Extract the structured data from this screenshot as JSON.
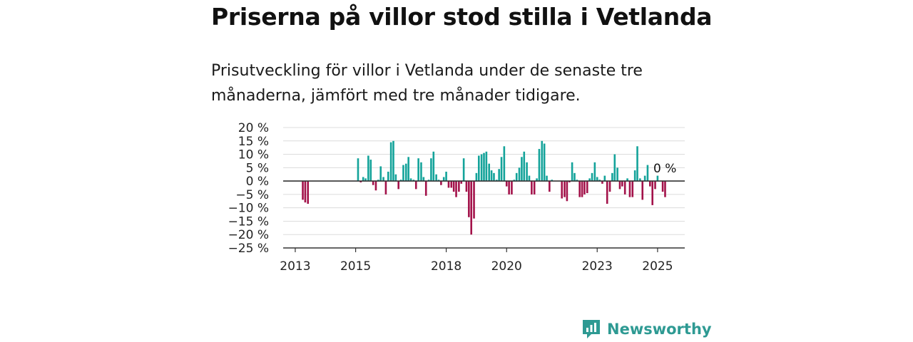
{
  "title": "Priserna på villor stod stilla i Vetlanda",
  "subtitle": "Prisutveckling för villor i Vetlanda under de senaste tre månaderna, jämfört med tre månader tidigare.",
  "brand": "Newsworthy",
  "colors": {
    "positive": "#14a39a",
    "negative": "#a3124a",
    "grid": "#dcdcdc",
    "axis": "#333333",
    "brand": "#2e9a93"
  },
  "chart_data": {
    "type": "bar",
    "title": "",
    "xlabel": "",
    "ylabel": "",
    "ylim": [
      -25,
      20
    ],
    "ytick_labels": [
      "20 %",
      "15 %",
      "10 %",
      "5 %",
      "0 %",
      "−5 %",
      "−10 %",
      "−15 %",
      "−20 %",
      "−25 %"
    ],
    "ytick_values": [
      20,
      15,
      10,
      5,
      0,
      -5,
      -10,
      -15,
      -20,
      -25
    ],
    "xtick_labels": [
      "2013",
      "2015",
      "2018",
      "2020",
      "2023",
      "2025"
    ],
    "xtick_values": [
      2013.0,
      2015.0,
      2018.0,
      2020.0,
      2023.0,
      2025.0
    ],
    "xlim": [
      2012.6,
      2025.9
    ],
    "annotation": "0 %",
    "points": [
      {
        "x": 2013.25,
        "y": -7
      },
      {
        "x": 2013.33,
        "y": -8
      },
      {
        "x": 2013.42,
        "y": -8.5
      },
      {
        "x": 2015.08,
        "y": 8.5
      },
      {
        "x": 2015.17,
        "y": -0.5
      },
      {
        "x": 2015.25,
        "y": 1.5
      },
      {
        "x": 2015.33,
        "y": 1
      },
      {
        "x": 2015.42,
        "y": 9.5
      },
      {
        "x": 2015.5,
        "y": 8
      },
      {
        "x": 2015.58,
        "y": -1.5
      },
      {
        "x": 2015.67,
        "y": -3.5
      },
      {
        "x": 2015.75,
        "y": 0.5
      },
      {
        "x": 2015.83,
        "y": 5.5
      },
      {
        "x": 2015.92,
        "y": 1.5
      },
      {
        "x": 2016.0,
        "y": -5
      },
      {
        "x": 2016.08,
        "y": 3.5
      },
      {
        "x": 2016.17,
        "y": 14.5
      },
      {
        "x": 2016.25,
        "y": 15
      },
      {
        "x": 2016.33,
        "y": 2.5
      },
      {
        "x": 2016.42,
        "y": -3
      },
      {
        "x": 2016.5,
        "y": 0.5
      },
      {
        "x": 2016.58,
        "y": 6
      },
      {
        "x": 2016.67,
        "y": 6.5
      },
      {
        "x": 2016.75,
        "y": 9
      },
      {
        "x": 2016.83,
        "y": 1
      },
      {
        "x": 2016.92,
        "y": 0.5
      },
      {
        "x": 2017.0,
        "y": -3
      },
      {
        "x": 2017.08,
        "y": 8.5
      },
      {
        "x": 2017.17,
        "y": 7
      },
      {
        "x": 2017.25,
        "y": 1.5
      },
      {
        "x": 2017.33,
        "y": -5.5
      },
      {
        "x": 2017.42,
        "y": 0.5
      },
      {
        "x": 2017.5,
        "y": 8.5
      },
      {
        "x": 2017.58,
        "y": 11
      },
      {
        "x": 2017.67,
        "y": 2.5
      },
      {
        "x": 2017.75,
        "y": 0.5
      },
      {
        "x": 2017.83,
        "y": -1.5
      },
      {
        "x": 2017.92,
        "y": 1.5
      },
      {
        "x": 2018.0,
        "y": 3.5
      },
      {
        "x": 2018.08,
        "y": -2.5
      },
      {
        "x": 2018.17,
        "y": -2.5
      },
      {
        "x": 2018.25,
        "y": -4
      },
      {
        "x": 2018.33,
        "y": -6
      },
      {
        "x": 2018.42,
        "y": -4
      },
      {
        "x": 2018.5,
        "y": -1
      },
      {
        "x": 2018.58,
        "y": 8.5
      },
      {
        "x": 2018.67,
        "y": -4
      },
      {
        "x": 2018.75,
        "y": -13.5
      },
      {
        "x": 2018.83,
        "y": -20
      },
      {
        "x": 2018.92,
        "y": -14
      },
      {
        "x": 2019.0,
        "y": 3
      },
      {
        "x": 2019.08,
        "y": 9.5
      },
      {
        "x": 2019.17,
        "y": 10
      },
      {
        "x": 2019.25,
        "y": 10.5
      },
      {
        "x": 2019.33,
        "y": 11
      },
      {
        "x": 2019.42,
        "y": 6.5
      },
      {
        "x": 2019.5,
        "y": 4
      },
      {
        "x": 2019.58,
        "y": 3
      },
      {
        "x": 2019.67,
        "y": 0.5
      },
      {
        "x": 2019.75,
        "y": 4.5
      },
      {
        "x": 2019.83,
        "y": 9
      },
      {
        "x": 2019.92,
        "y": 13
      },
      {
        "x": 2020.0,
        "y": -2
      },
      {
        "x": 2020.08,
        "y": -5
      },
      {
        "x": 2020.17,
        "y": -5
      },
      {
        "x": 2020.25,
        "y": 0.5
      },
      {
        "x": 2020.33,
        "y": 3
      },
      {
        "x": 2020.42,
        "y": 5
      },
      {
        "x": 2020.5,
        "y": 9
      },
      {
        "x": 2020.58,
        "y": 11
      },
      {
        "x": 2020.67,
        "y": 7
      },
      {
        "x": 2020.75,
        "y": 2
      },
      {
        "x": 2020.83,
        "y": -5
      },
      {
        "x": 2020.92,
        "y": -5
      },
      {
        "x": 2021.0,
        "y": 1
      },
      {
        "x": 2021.08,
        "y": 12
      },
      {
        "x": 2021.17,
        "y": 15
      },
      {
        "x": 2021.25,
        "y": 14
      },
      {
        "x": 2021.33,
        "y": 2
      },
      {
        "x": 2021.42,
        "y": -4
      },
      {
        "x": 2021.5,
        "y": 0.5
      },
      {
        "x": 2021.83,
        "y": -6.5
      },
      {
        "x": 2021.92,
        "y": -6
      },
      {
        "x": 2022.0,
        "y": -7.5
      },
      {
        "x": 2022.08,
        "y": -0.5
      },
      {
        "x": 2022.17,
        "y": 7
      },
      {
        "x": 2022.25,
        "y": 3
      },
      {
        "x": 2022.33,
        "y": 0.5
      },
      {
        "x": 2022.42,
        "y": -6
      },
      {
        "x": 2022.5,
        "y": -6
      },
      {
        "x": 2022.58,
        "y": -5
      },
      {
        "x": 2022.67,
        "y": -4.5
      },
      {
        "x": 2022.75,
        "y": 1
      },
      {
        "x": 2022.83,
        "y": 3
      },
      {
        "x": 2022.92,
        "y": 7
      },
      {
        "x": 2023.0,
        "y": 1.5
      },
      {
        "x": 2023.08,
        "y": 0.5
      },
      {
        "x": 2023.17,
        "y": -1
      },
      {
        "x": 2023.25,
        "y": 2
      },
      {
        "x": 2023.33,
        "y": -8.5
      },
      {
        "x": 2023.42,
        "y": -4
      },
      {
        "x": 2023.5,
        "y": 3
      },
      {
        "x": 2023.58,
        "y": 10
      },
      {
        "x": 2023.67,
        "y": 5
      },
      {
        "x": 2023.75,
        "y": -3
      },
      {
        "x": 2023.83,
        "y": -2
      },
      {
        "x": 2023.92,
        "y": -5
      },
      {
        "x": 2024.0,
        "y": 1
      },
      {
        "x": 2024.08,
        "y": -6
      },
      {
        "x": 2024.17,
        "y": -6
      },
      {
        "x": 2024.25,
        "y": 4
      },
      {
        "x": 2024.33,
        "y": 13
      },
      {
        "x": 2024.42,
        "y": 1
      },
      {
        "x": 2024.5,
        "y": -7
      },
      {
        "x": 2024.58,
        "y": 2
      },
      {
        "x": 2024.67,
        "y": 6
      },
      {
        "x": 2024.75,
        "y": -2
      },
      {
        "x": 2024.83,
        "y": -9
      },
      {
        "x": 2024.92,
        "y": -3
      },
      {
        "x": 2025.0,
        "y": 2
      },
      {
        "x": 2025.08,
        "y": 0
      },
      {
        "x": 2025.17,
        "y": -4
      },
      {
        "x": 2025.25,
        "y": -6
      }
    ]
  }
}
